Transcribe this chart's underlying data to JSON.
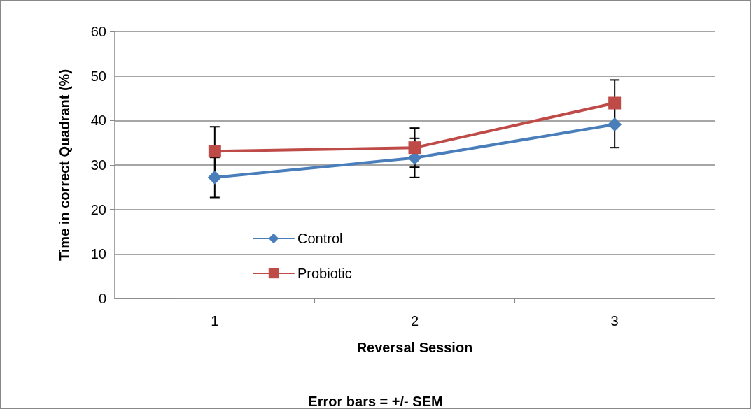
{
  "chart_data": {
    "type": "line",
    "xlabel": "Reversal Session",
    "ylabel": "Time in correct Quadrant (%)",
    "categories": [
      "1",
      "2",
      "3"
    ],
    "series": [
      {
        "name": "Control",
        "color": "#4a7ebb",
        "marker": "diamond",
        "values": [
          27.2,
          31.6,
          39.1
        ],
        "errors": [
          4.5,
          4.4,
          5.2
        ]
      },
      {
        "name": "Probiotic",
        "color": "#be4b48",
        "marker": "square",
        "values": [
          33.1,
          33.9,
          43.9
        ],
        "errors": [
          5.5,
          4.4,
          5.2
        ]
      }
    ],
    "ylim": [
      0,
      60
    ],
    "yticks": [
      0,
      10,
      20,
      30,
      40,
      50,
      60
    ],
    "grid": "y",
    "legend": "left",
    "line_style": "solid",
    "annotations": [
      "Error bars = +/- SEM"
    ]
  }
}
